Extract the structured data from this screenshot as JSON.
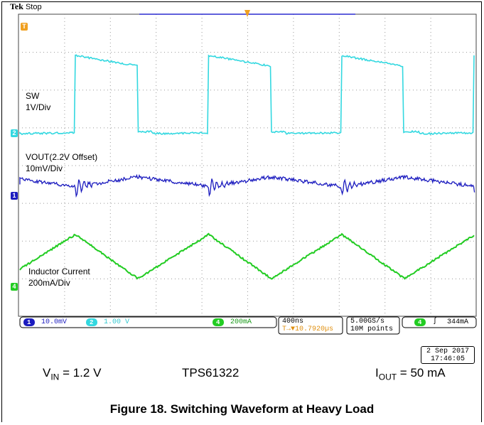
{
  "header": {
    "brand": "Tek",
    "status": "Stop"
  },
  "channels": [
    {
      "id": "1",
      "scale": "10.0mV",
      "color": "#1c1cbf"
    },
    {
      "id": "2",
      "scale": "1.00 V",
      "color": "#33d8e0"
    },
    {
      "id": "4",
      "scale": "200mA",
      "color": "#22cc22"
    }
  ],
  "timebase": {
    "scale": "400ns",
    "position": "10.7920µs"
  },
  "acquisition": {
    "sample_rate": "5.00GS/s",
    "points": "10M points"
  },
  "trigger": {
    "channel": "4",
    "slope": "ʃ",
    "level": "344mA"
  },
  "annotations": {
    "sw_name": "SW",
    "sw_scale": "1V/Div",
    "vout_name": "VOUT(2.2V Offset)",
    "vout_scale": "10mV/Div",
    "il_name": "Inductor Current",
    "il_scale": "200mA/Div"
  },
  "timestamp": {
    "date": "2 Sep  2017",
    "time": "17:46:05"
  },
  "conditions": {
    "vin_main": "V",
    "vin_sub": "IN",
    "vin_value": " = 1.2 V",
    "device": "TPS61322",
    "iout_main": "I",
    "iout_sub": "OUT",
    "iout_value": " = 50 mA"
  },
  "caption": "Figure 18. Switching Waveform at Heavy Load",
  "markers": {
    "trigger_top": "T",
    "ch1": "1",
    "ch2": "2",
    "ch4": "4"
  }
}
